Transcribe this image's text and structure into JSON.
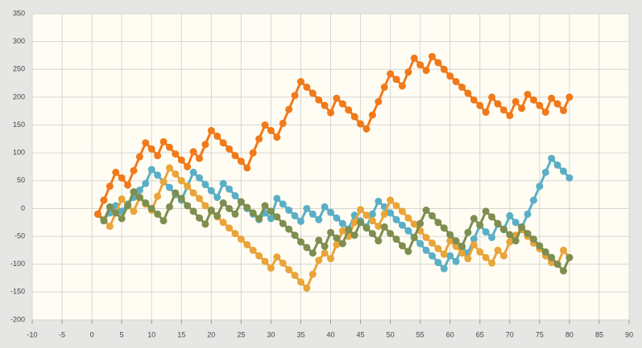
{
  "chart_data": {
    "type": "line",
    "x": [
      1,
      2,
      3,
      4,
      5,
      6,
      7,
      8,
      9,
      10,
      11,
      12,
      13,
      14,
      15,
      16,
      17,
      18,
      19,
      20,
      21,
      22,
      23,
      24,
      25,
      26,
      27,
      28,
      29,
      30,
      31,
      32,
      33,
      34,
      35,
      36,
      37,
      38,
      39,
      40,
      41,
      42,
      43,
      44,
      45,
      46,
      47,
      48,
      49,
      50,
      51,
      52,
      53,
      54,
      55,
      56,
      57,
      58,
      59,
      60,
      61,
      62,
      63,
      64,
      65,
      66,
      67,
      68,
      69,
      70,
      71,
      72,
      73,
      74,
      75,
      76,
      77,
      78,
      79,
      80
    ],
    "series": [
      {
        "color": "#5aafc6",
        "values": [
          -10,
          -20,
          -8,
          5,
          -5,
          8,
          20,
          33,
          45,
          70,
          60,
          48,
          38,
          25,
          15,
          40,
          65,
          55,
          43,
          32,
          20,
          45,
          35,
          23,
          12,
          0,
          -10,
          -20,
          -8,
          -18,
          18,
          8,
          -3,
          -13,
          -23,
          0,
          -10,
          -20,
          3,
          -7,
          -17,
          -27,
          -37,
          -12,
          -22,
          -33,
          -10,
          13,
          3,
          -8,
          -20,
          -30,
          -40,
          -52,
          -63,
          -75,
          -85,
          -97,
          -108,
          -85,
          -95,
          -70,
          -80,
          -55,
          -30,
          -42,
          -52,
          -28,
          -38,
          -13,
          -25,
          -35,
          -10,
          15,
          40,
          65,
          90,
          78,
          67,
          55
        ]
      },
      {
        "color": "#e9a43a",
        "values": [
          -10,
          -20,
          -32,
          -8,
          17,
          5,
          -5,
          20,
          8,
          -3,
          22,
          48,
          73,
          62,
          50,
          40,
          28,
          18,
          5,
          -5,
          -15,
          -25,
          -35,
          -45,
          -55,
          -65,
          -75,
          -85,
          -95,
          -107,
          -87,
          -98,
          -110,
          -120,
          -132,
          -143,
          -118,
          -93,
          -80,
          -90,
          -65,
          -40,
          -50,
          -25,
          -2,
          -12,
          -22,
          -32,
          -10,
          15,
          5,
          -5,
          -17,
          -28,
          -40,
          -52,
          -62,
          -72,
          -82,
          -58,
          -68,
          -80,
          -90,
          -65,
          -78,
          -88,
          -98,
          -75,
          -85,
          -60,
          -48,
          -38,
          -50,
          -62,
          -72,
          -85,
          -97,
          -100,
          -75,
          -88
        ]
      },
      {
        "color": "#7d8e50",
        "values": [
          -10,
          -22,
          3,
          -8,
          -18,
          5,
          30,
          20,
          10,
          0,
          -10,
          -22,
          3,
          28,
          18,
          5,
          -5,
          -17,
          -28,
          -3,
          -13,
          10,
          0,
          -10,
          12,
          2,
          -8,
          -18,
          5,
          -5,
          -15,
          -27,
          -37,
          -48,
          -60,
          -70,
          -80,
          -57,
          -68,
          -43,
          -53,
          -63,
          -38,
          -48,
          -25,
          -35,
          -45,
          -58,
          -33,
          -45,
          -55,
          -67,
          -77,
          -52,
          -27,
          -3,
          -13,
          -25,
          -35,
          -47,
          -58,
          -68,
          -43,
          -18,
          -30,
          -5,
          -15,
          -27,
          -37,
          -47,
          -58,
          -33,
          -45,
          -55,
          -67,
          -78,
          -88,
          -100,
          -112,
          -88
        ]
      },
      {
        "color": "#f07a1b",
        "values": [
          -10,
          15,
          40,
          65,
          55,
          42,
          68,
          93,
          118,
          107,
          95,
          120,
          110,
          98,
          87,
          75,
          102,
          90,
          115,
          140,
          130,
          118,
          107,
          95,
          85,
          73,
          100,
          125,
          150,
          140,
          128,
          153,
          178,
          203,
          228,
          218,
          207,
          195,
          185,
          172,
          198,
          188,
          177,
          165,
          152,
          143,
          168,
          192,
          218,
          242,
          232,
          220,
          245,
          270,
          258,
          248,
          273,
          262,
          250,
          238,
          228,
          218,
          207,
          195,
          185,
          173,
          200,
          188,
          177,
          167,
          192,
          180,
          205,
          195,
          185,
          173,
          198,
          188,
          176,
          200
        ]
      }
    ],
    "xlim": [
      -10,
      90
    ],
    "xticks": [
      -10,
      -5,
      0,
      5,
      10,
      15,
      20,
      25,
      30,
      35,
      40,
      45,
      50,
      55,
      60,
      65,
      70,
      75,
      80,
      85,
      90
    ],
    "ylim": [
      -200,
      350
    ],
    "yticks": [
      -200,
      -150,
      -100,
      -50,
      0,
      50,
      100,
      150,
      200,
      250,
      300,
      350
    ],
    "grid": true
  }
}
